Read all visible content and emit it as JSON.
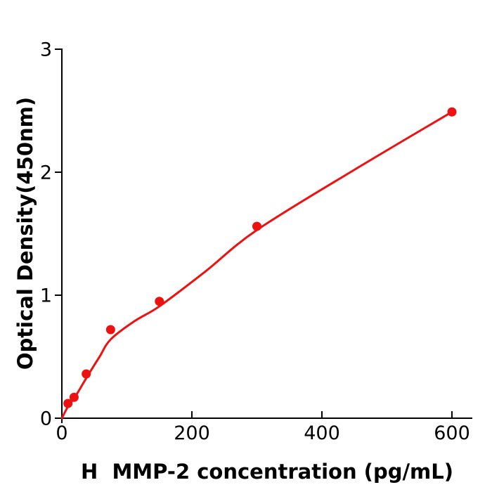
{
  "figure": {
    "background": "#ffffff"
  },
  "chart_data": {
    "type": "scatter",
    "title": "",
    "xlabel": "H  MMP-2 concentration (pg/mL)",
    "ylabel": "Optical Density(450nm)",
    "xlim": [
      0,
      631
    ],
    "ylim": [
      0,
      3
    ],
    "xticks": [
      0,
      200,
      400,
      600
    ],
    "yticks": [
      0,
      1,
      2,
      3
    ],
    "grid": false,
    "legend": "none",
    "points": {
      "x": [
        9.4,
        18.8,
        37.5,
        75,
        150,
        300,
        600
      ],
      "y": [
        0.12,
        0.17,
        0.36,
        0.72,
        0.95,
        1.56,
        2.49
      ]
    },
    "fit_curve": {
      "x": [
        0,
        10,
        20,
        38,
        58,
        75,
        112,
        150,
        220,
        300,
        450,
        600
      ],
      "y": [
        0,
        0.1,
        0.17,
        0.33,
        0.5,
        0.64,
        0.79,
        0.91,
        1.19,
        1.53,
        2.02,
        2.49
      ]
    },
    "marker_color": "#ed1111",
    "line_color": "#ed1111",
    "axis_color": "#000000"
  }
}
